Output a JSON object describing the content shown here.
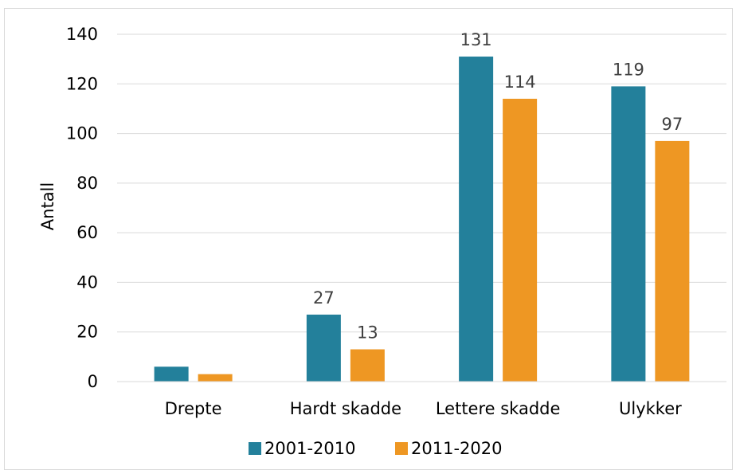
{
  "chart_data": {
    "type": "bar",
    "title": "",
    "xlabel": "",
    "ylabel": "Antall",
    "ylim": [
      0,
      140
    ],
    "yticks": [
      0,
      20,
      40,
      60,
      80,
      100,
      120,
      140
    ],
    "grid": true,
    "legend_position": "bottom",
    "categories": [
      "Drepte",
      "Hardt skadde",
      "Lettere skadde",
      "Ulykker"
    ],
    "series": [
      {
        "name": "2001-2010",
        "color": "#23809b",
        "values": [
          6,
          27,
          131,
          119
        ],
        "labels": [
          "",
          "27",
          "131",
          "119"
        ]
      },
      {
        "name": "2011-2020",
        "color": "#ee9723",
        "values": [
          3,
          13,
          114,
          97
        ],
        "labels": [
          "",
          "13",
          "114",
          "97"
        ]
      }
    ]
  }
}
